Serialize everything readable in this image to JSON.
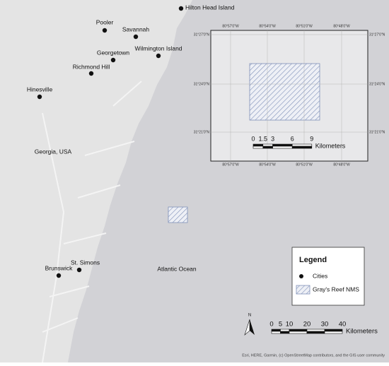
{
  "map": {
    "cities": [
      "Hilton Head Island",
      "Pooler",
      "Savannah",
      "Georgetown",
      "Wilmington Island",
      "Richmond Hill",
      "Hinesville",
      "Brunswick",
      "St. Simons"
    ],
    "region_label": "Georgia, USA",
    "ocean_label": "Atlantic Ocean",
    "north": "N",
    "scale": {
      "ticks": [
        0,
        5,
        10,
        20,
        30,
        40
      ],
      "unit": "Kilometers"
    },
    "legend": {
      "title": "Legend",
      "items": [
        "Cities",
        "Gray's Reef NMS"
      ]
    },
    "attribution": "Esri, HERE, Garmin, (c) OpenStreetMap contributors, and the GIS user community"
  },
  "inset": {
    "longitudes": [
      "80°57'0\"W",
      "80°54'0\"W",
      "80°51'0\"W",
      "80°48'0\"W"
    ],
    "latitudes": [
      "31°27'0\"N",
      "31°24'0\"N",
      "31°21'0\"N"
    ],
    "scale": {
      "ticks": [
        0,
        1.5,
        3,
        6,
        9
      ],
      "unit": "Kilometers"
    }
  }
}
